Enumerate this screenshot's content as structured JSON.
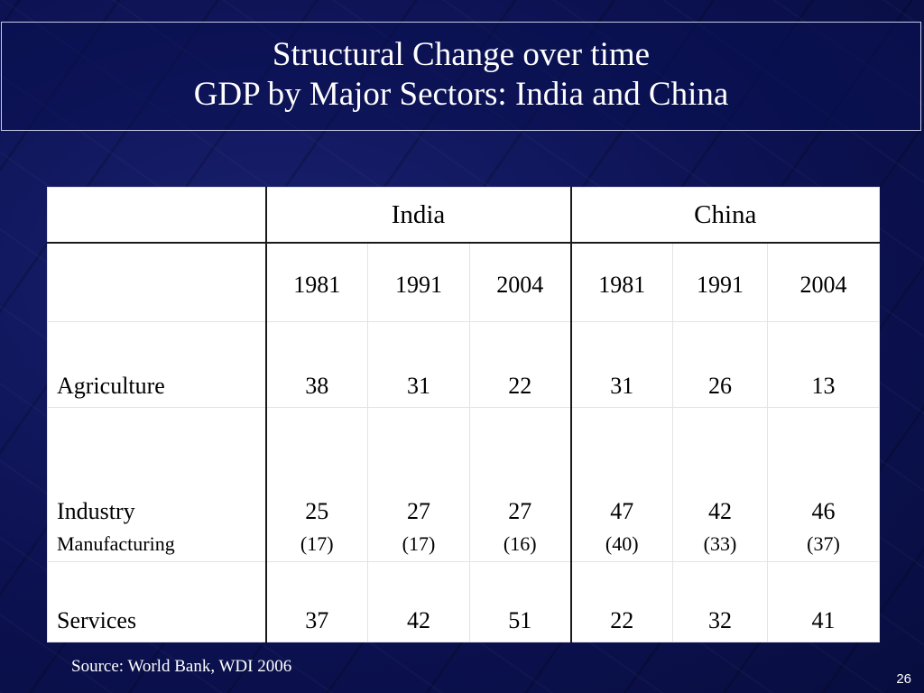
{
  "title": {
    "line1": "Structural Change over time",
    "line2": "GDP by Major Sectors: India and China"
  },
  "table": {
    "groups": [
      "India",
      "China"
    ],
    "years": [
      "1981",
      "1991",
      "2004",
      "1981",
      "1991",
      "2004"
    ],
    "rows": [
      {
        "label": "Agriculture",
        "values": [
          "38",
          "31",
          "22",
          "31",
          "26",
          "13"
        ]
      },
      {
        "label": "Industry",
        "sublabel": "Manufacturing",
        "values": [
          "25",
          "27",
          "27",
          "47",
          "42",
          "46"
        ],
        "subvalues": [
          "(17)",
          "(17)",
          "(16)",
          "(40)",
          "(33)",
          "(37)"
        ]
      },
      {
        "label": "Services",
        "values": [
          "37",
          "42",
          "51",
          "22",
          "32",
          "41"
        ]
      }
    ]
  },
  "source": "Source: World Bank, WDI 2006",
  "page_number": "26"
}
